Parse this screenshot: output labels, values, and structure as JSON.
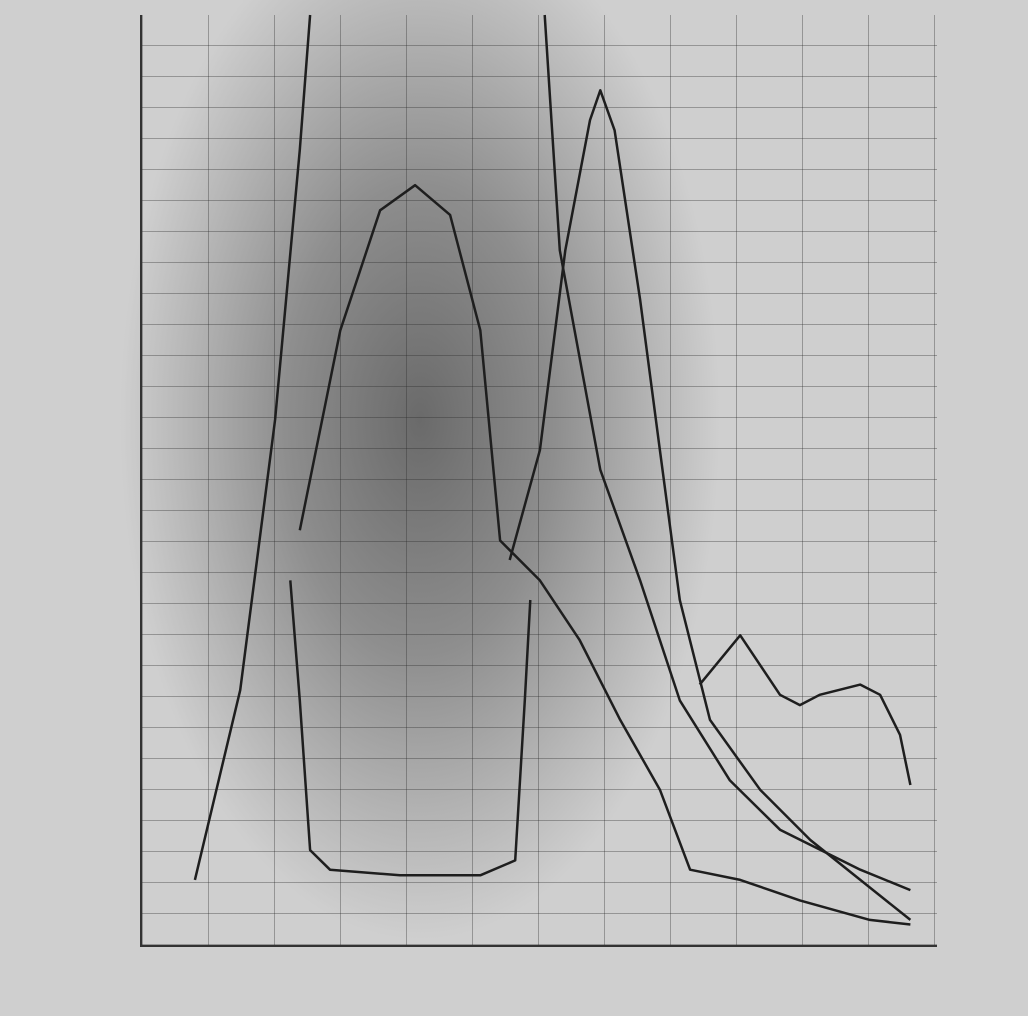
{
  "chart_data": {
    "type": "line",
    "xlim": [
      0,
      100
    ],
    "ylim": [
      0,
      100
    ],
    "series": [
      {
        "color": "#1e1e1e",
        "x": [
          6.9,
          12.6,
          17.0,
          20.1,
          21.4,
          36.0,
          50.9,
          52.8,
          57.9,
          62.9,
          67.9,
          74.2,
          80.5,
          90.6,
          96.9
        ],
        "values": [
          7.0,
          27.4,
          56.5,
          85.5,
          100,
          null,
          100,
          74.7,
          51.1,
          39.2,
          26.3,
          17.7,
          12.4,
          8.1,
          5.9
        ]
      },
      {
        "color": "#1e1e1e",
        "x": [
          20.1,
          25.2,
          30.2,
          34.6,
          39.0,
          42.8,
          45.3,
          50.3,
          55.3,
          60.4,
          65.4,
          69.2,
          75.5,
          83.0,
          91.8,
          96.9
        ],
        "values": [
          44.6,
          66.1,
          79.0,
          81.7,
          78.5,
          66.1,
          43.5,
          39.2,
          32.8,
          24.2,
          16.7,
          8.1,
          7.0,
          4.8,
          2.7,
          2.2
        ]
      },
      {
        "color": "#1e1e1e",
        "x": [
          46.5,
          50.3,
          53.5,
          56.6,
          57.9,
          59.7,
          62.9,
          65.4,
          67.9,
          71.7,
          78.0,
          84.3,
          90.6,
          96.9
        ],
        "values": [
          41.4,
          53.2,
          74.7,
          88.7,
          91.9,
          87.6,
          69.4,
          53.2,
          37.1,
          24.2,
          16.7,
          11.3,
          7.0,
          2.7
        ]
      },
      {
        "color": "#1e1e1e",
        "x": [
          18.9,
          20.1,
          21.4,
          23.9,
          32.7,
          42.8,
          47.2,
          48.4,
          49.1
        ],
        "values": [
          39.2,
          26.3,
          10.2,
          8.1,
          7.5,
          7.5,
          9.1,
          26.3,
          37.1
        ]
      },
      {
        "color": "#1e1e1e",
        "x": [
          70.4,
          75.5,
          80.5,
          83.0,
          85.5,
          90.6,
          93.1,
          95.6,
          96.9
        ],
        "values": [
          28.0,
          33.3,
          26.9,
          25.8,
          26.9,
          28.0,
          26.9,
          22.6,
          17.2
        ]
      }
    ]
  }
}
